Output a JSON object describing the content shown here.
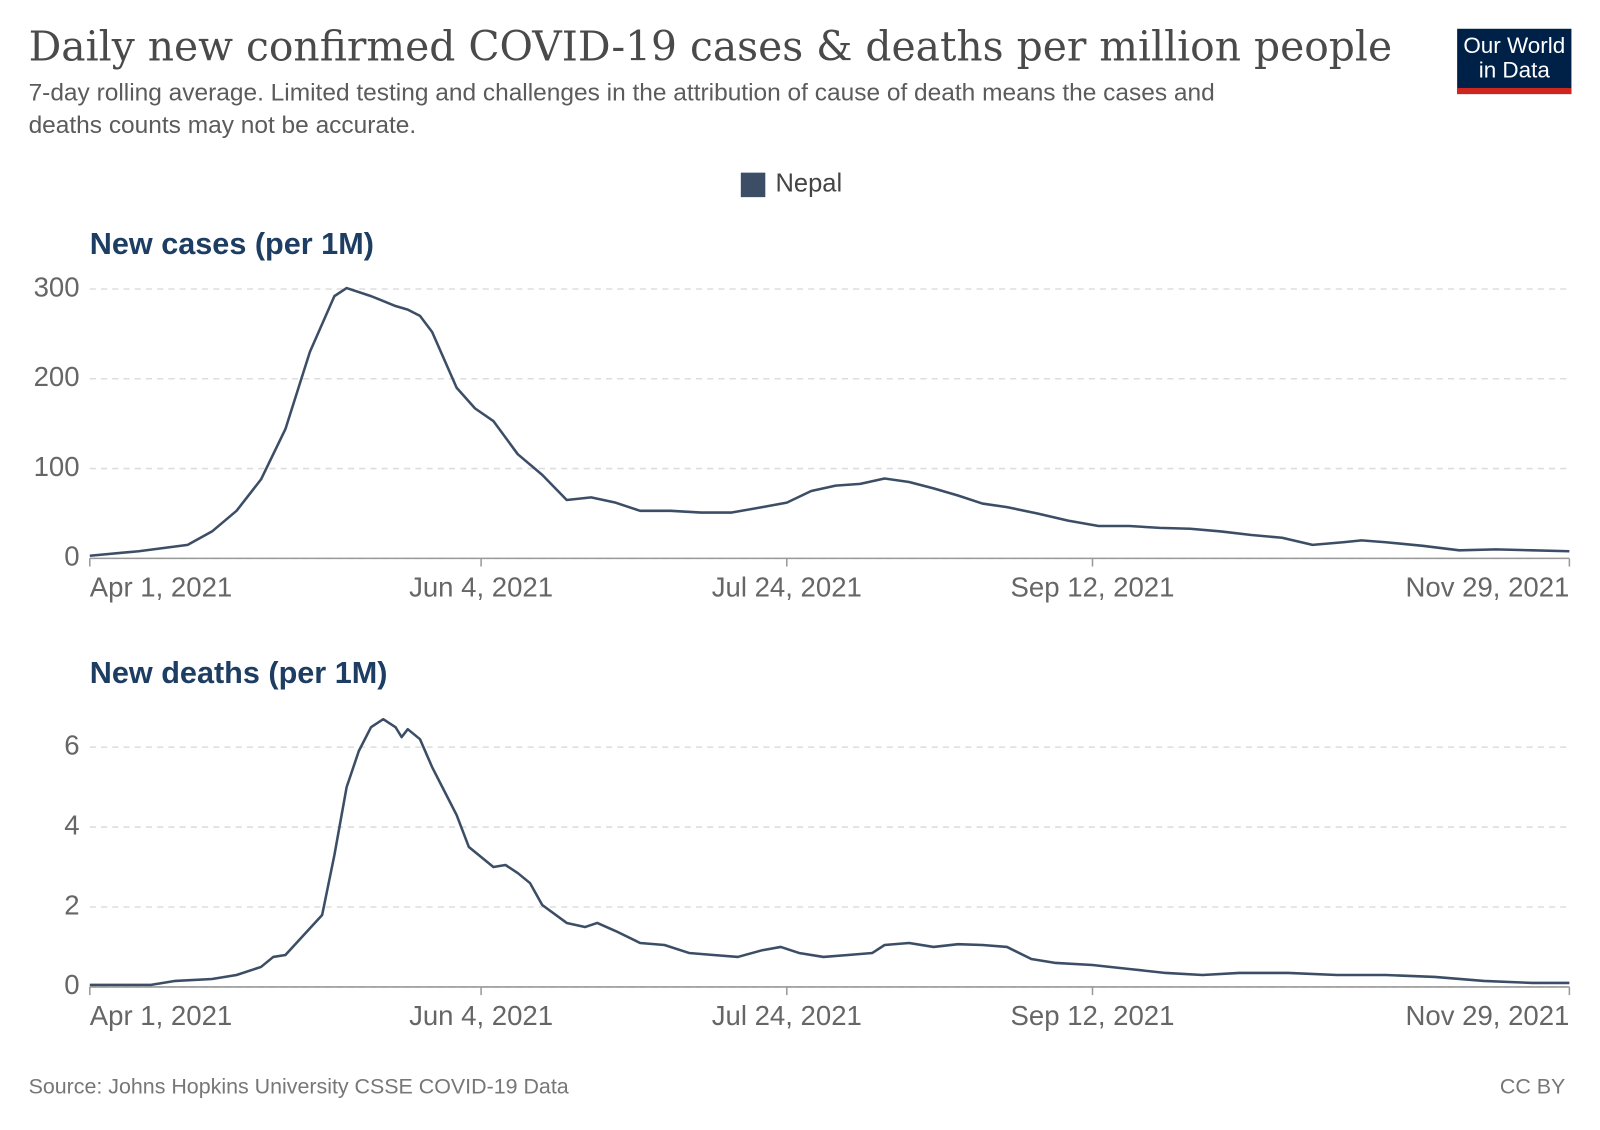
{
  "header": {
    "title": "Daily new confirmed COVID-19 cases & deaths per million people",
    "subtitle": [
      "7-day rolling average. Limited testing and challenges in the attribution of cause of death means the cases and",
      "deaths counts may not be accurate."
    ],
    "logo": [
      "Our World",
      "in Data"
    ]
  },
  "footer": {
    "source": "Source: Johns Hopkins University CSSE COVID-19 Data",
    "license": "CC BY"
  },
  "chart_data": [
    {
      "type": "line",
      "title": "New cases (per 1M)",
      "x": [
        "2021-04-01",
        "2021-04-09",
        "2021-04-17",
        "2021-04-21",
        "2021-04-25",
        "2021-04-29",
        "2021-05-03",
        "2021-05-07",
        "2021-05-11",
        "2021-05-13",
        "2021-05-17",
        "2021-05-21",
        "2021-05-23",
        "2021-05-25",
        "2021-05-27",
        "2021-05-31",
        "2021-06-03",
        "2021-06-06",
        "2021-06-10",
        "2021-06-14",
        "2021-06-18",
        "2021-06-22",
        "2021-06-26",
        "2021-06-30",
        "2021-07-05",
        "2021-07-10",
        "2021-07-15",
        "2021-07-20",
        "2021-07-24",
        "2021-07-28",
        "2021-08-01",
        "2021-08-05",
        "2021-08-09",
        "2021-08-13",
        "2021-08-17",
        "2021-08-21",
        "2021-08-25",
        "2021-08-29",
        "2021-09-03",
        "2021-09-08",
        "2021-09-13",
        "2021-09-18",
        "2021-09-23",
        "2021-09-28",
        "2021-10-03",
        "2021-10-08",
        "2021-10-13",
        "2021-10-18",
        "2021-10-23",
        "2021-10-26",
        "2021-10-30",
        "2021-11-05",
        "2021-11-11",
        "2021-11-17",
        "2021-11-23",
        "2021-11-29"
      ],
      "series": [
        {
          "name": "Nepal",
          "color": "#3c4e66",
          "values": [
            3,
            8,
            15,
            30,
            53,
            88,
            144,
            230,
            292,
            301,
            292,
            281,
            277,
            270,
            252,
            190,
            167,
            153,
            116,
            93,
            65,
            68,
            62,
            53,
            53,
            51,
            51,
            57,
            62,
            75,
            81,
            83,
            89,
            85,
            78,
            70,
            61,
            57,
            50,
            42,
            36,
            36,
            34,
            33,
            30,
            26,
            23,
            15,
            18,
            20,
            18,
            14,
            9,
            10,
            9,
            8
          ]
        }
      ],
      "xlim": [
        "2021-04-01",
        "2021-11-29"
      ],
      "xticks": [
        {
          "value": "2021-04-01",
          "label": "Apr 1, 2021"
        },
        {
          "value": "2021-06-04",
          "label": "Jun 4, 2021"
        },
        {
          "value": "2021-07-24",
          "label": "Jul 24, 2021"
        },
        {
          "value": "2021-09-12",
          "label": "Sep 12, 2021"
        },
        {
          "value": "2021-11-29",
          "label": "Nov 29, 2021"
        }
      ],
      "ylim": [
        0,
        300
      ],
      "yticks": [
        0,
        100,
        200,
        300
      ],
      "grid": true
    },
    {
      "type": "line",
      "title": "New deaths (per 1M)",
      "x": [
        "2021-04-01",
        "2021-04-11",
        "2021-04-15",
        "2021-04-21",
        "2021-04-25",
        "2021-04-29",
        "2021-05-01",
        "2021-05-03",
        "2021-05-06",
        "2021-05-09",
        "2021-05-11",
        "2021-05-13",
        "2021-05-15",
        "2021-05-17",
        "2021-05-19",
        "2021-05-21",
        "2021-05-22",
        "2021-05-23",
        "2021-05-25",
        "2021-05-27",
        "2021-05-29",
        "2021-05-31",
        "2021-06-02",
        "2021-06-04",
        "2021-06-06",
        "2021-06-08",
        "2021-06-10",
        "2021-06-12",
        "2021-06-14",
        "2021-06-18",
        "2021-06-21",
        "2021-06-23",
        "2021-06-26",
        "2021-06-30",
        "2021-07-04",
        "2021-07-08",
        "2021-07-12",
        "2021-07-16",
        "2021-07-20",
        "2021-07-23",
        "2021-07-26",
        "2021-07-30",
        "2021-08-03",
        "2021-08-07",
        "2021-08-09",
        "2021-08-13",
        "2021-08-17",
        "2021-08-21",
        "2021-08-25",
        "2021-08-29",
        "2021-09-02",
        "2021-09-06",
        "2021-09-12",
        "2021-09-18",
        "2021-09-24",
        "2021-09-30",
        "2021-10-06",
        "2021-10-14",
        "2021-10-22",
        "2021-10-30",
        "2021-11-07",
        "2021-11-15",
        "2021-11-23",
        "2021-11-29"
      ],
      "series": [
        {
          "color": "#3c4e66",
          "values": [
            0.05,
            0.05,
            0.15,
            0.2,
            0.3,
            0.5,
            0.75,
            0.8,
            1.3,
            1.8,
            3.3,
            5,
            5.9,
            6.5,
            6.7,
            6.5,
            6.25,
            6.45,
            6.2,
            5.5,
            4.9,
            4.3,
            3.5,
            3.25,
            3,
            3.05,
            2.85,
            2.6,
            2.05,
            1.6,
            1.5,
            1.6,
            1.4,
            1.1,
            1.05,
            0.85,
            0.8,
            0.75,
            0.92,
            1,
            0.85,
            0.75,
            0.8,
            0.85,
            1.05,
            1.1,
            1,
            1.07,
            1.05,
            1,
            0.7,
            0.6,
            0.55,
            0.45,
            0.35,
            0.3,
            0.35,
            0.35,
            0.3,
            0.3,
            0.25,
            0.15,
            0.1,
            0.1
          ]
        }
      ],
      "xlim": [
        "2021-04-01",
        "2021-11-29"
      ],
      "xticks": [
        {
          "value": "2021-04-01",
          "label": "Apr 1, 2021"
        },
        {
          "value": "2021-06-04",
          "label": "Jun 4, 2021"
        },
        {
          "value": "2021-07-24",
          "label": "Jul 24, 2021"
        },
        {
          "value": "2021-09-12",
          "label": "Sep 12, 2021"
        },
        {
          "value": "2021-11-29",
          "label": "Nov 29, 2021"
        }
      ],
      "ylim": [
        0,
        6
      ],
      "yticks": [
        0,
        2,
        4,
        6
      ],
      "grid": true
    }
  ]
}
